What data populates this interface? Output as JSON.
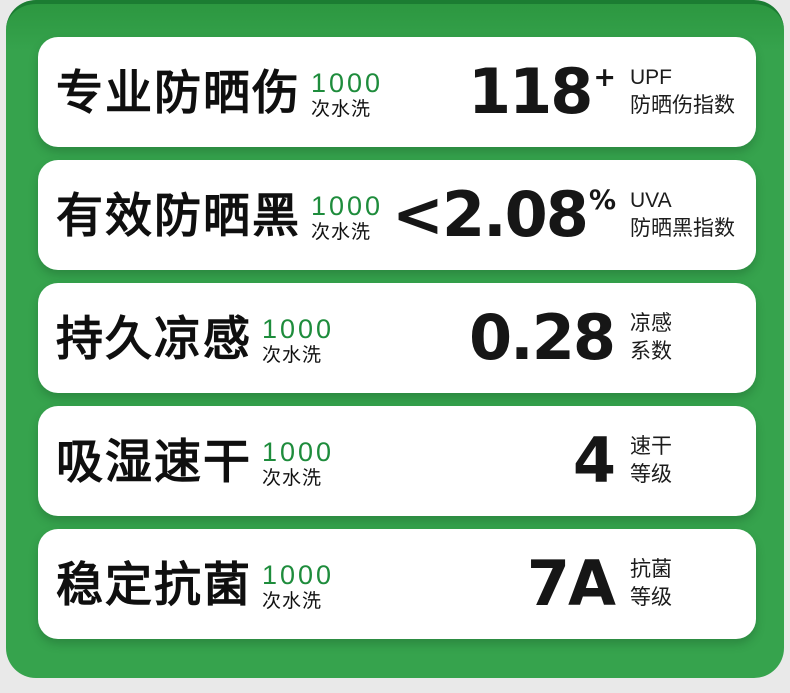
{
  "page": {
    "background_color": "#e9e9e9",
    "panel_color": "#36a34d",
    "panel_top_edge_color": "#1b7c32",
    "card_color": "#ffffff",
    "accent_green": "#1e8c3c",
    "text_color": "#0f0f0f"
  },
  "cards": [
    {
      "title": "专业防晒伤",
      "wash_count": "1000",
      "wash_label": "次水洗",
      "value": "118",
      "value_suffix": "+",
      "unit_line1": "UPF",
      "unit_line2": "防晒伤指数"
    },
    {
      "title": "有效防晒黑",
      "wash_count": "1000",
      "wash_label": "次水洗",
      "value": "<2.08",
      "value_suffix": "%",
      "unit_line1": "UVA",
      "unit_line2": "防晒黑指数"
    },
    {
      "title": "持久凉感",
      "wash_count": "1000",
      "wash_label": "次水洗",
      "value": "0.28",
      "value_suffix": "",
      "unit_line1": "凉感",
      "unit_line2": "系数"
    },
    {
      "title": "吸湿速干",
      "wash_count": "1000",
      "wash_label": "次水洗",
      "value": "4",
      "value_suffix": "",
      "unit_line1": "速干",
      "unit_line2": "等级"
    },
    {
      "title": "稳定抗菌",
      "wash_count": "1000",
      "wash_label": "次水洗",
      "value": "7A",
      "value_suffix": "",
      "unit_line1": "抗菌",
      "unit_line2": "等级"
    }
  ]
}
